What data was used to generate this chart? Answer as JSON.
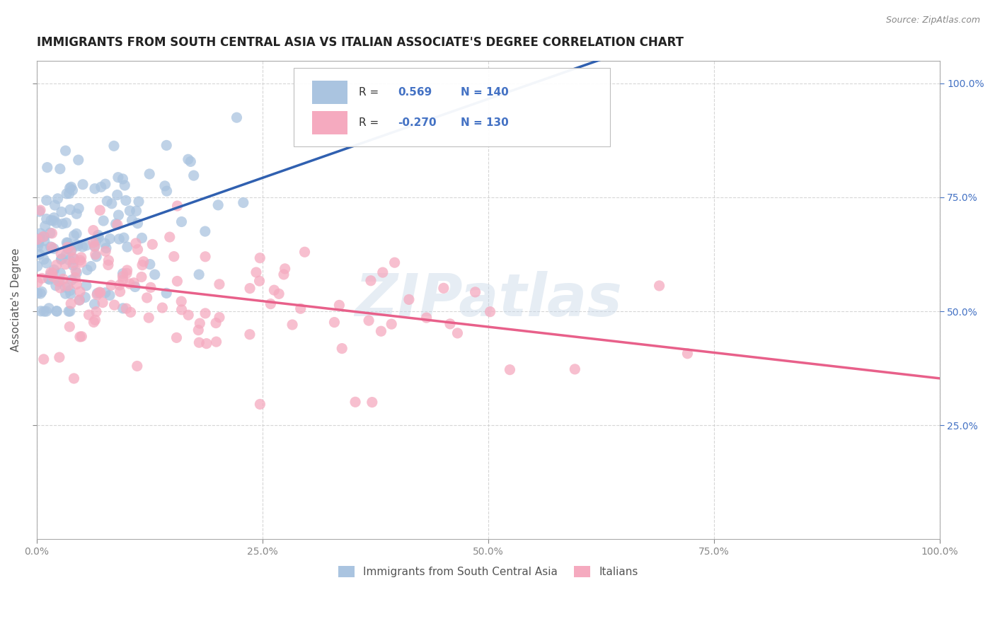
{
  "title": "IMMIGRANTS FROM SOUTH CENTRAL ASIA VS ITALIAN ASSOCIATE'S DEGREE CORRELATION CHART",
  "source_text": "Source: ZipAtlas.com",
  "ylabel": "Associate's Degree",
  "blue_R": 0.569,
  "blue_N": 140,
  "pink_R": -0.27,
  "pink_N": 130,
  "blue_color": "#aac4e0",
  "pink_color": "#f5aabf",
  "blue_line_color": "#3060b0",
  "pink_line_color": "#e8608a",
  "background_color": "#ffffff",
  "grid_color": "#cccccc",
  "title_color": "#222222",
  "watermark_text": "ZIPatlas",
  "legend_label_blue": "Immigrants from South Central Asia",
  "legend_label_pink": "Italians",
  "title_fontsize": 12,
  "axis_label_fontsize": 11,
  "tick_fontsize": 10,
  "right_tick_color": "#4472c4"
}
